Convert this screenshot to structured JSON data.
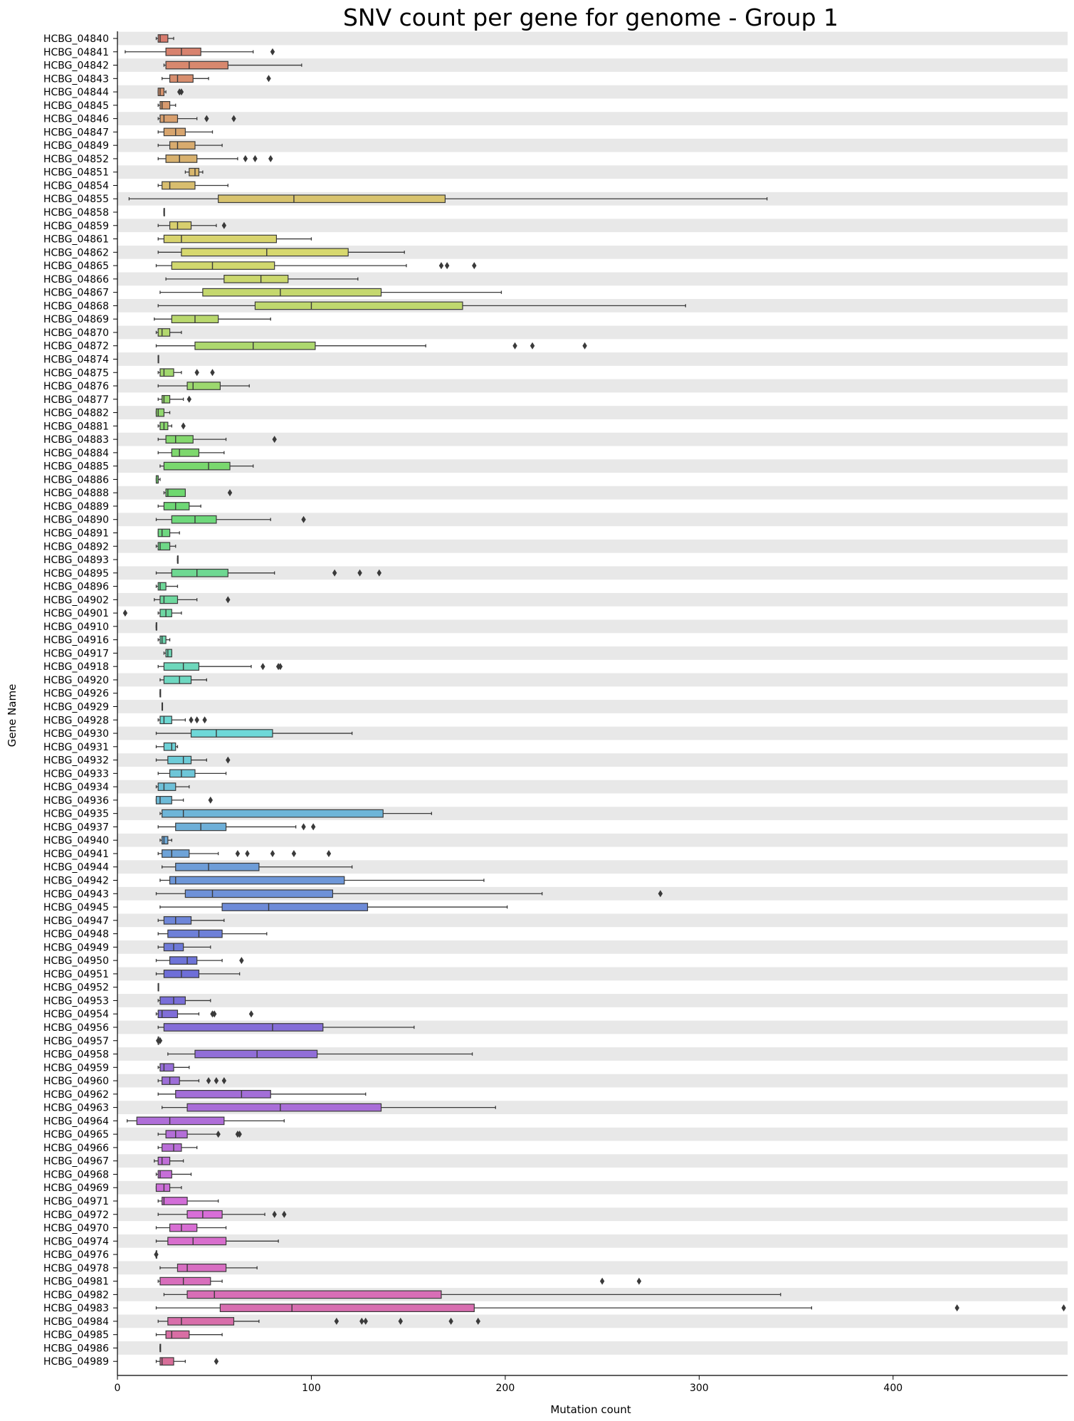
{
  "chart_data": {
    "type": "box",
    "orientation": "horizontal",
    "title": "SNV count per gene for genome - Group 1",
    "xlabel": "Mutation count",
    "ylabel": "Gene Name",
    "xlim": [
      0,
      490
    ],
    "xticks": [
      0,
      100,
      200,
      300,
      400
    ],
    "grid": false,
    "row_banding": true,
    "colors": {
      "band": "#e8e8e8",
      "box_edge": "#3a3a3a",
      "outlier": "#3a3a3a"
    },
    "palette_note": "hue-graded (salmon → orange → olive → green → teal → blue → violet → pink) down the gene list",
    "genes": [
      {
        "name": "HCBG_04840",
        "whislo": 20,
        "q1": 21,
        "med": 22,
        "q3": 26,
        "whishi": 29,
        "fliers": []
      },
      {
        "name": "HCBG_04841",
        "whislo": 4,
        "q1": 25,
        "med": 33,
        "q3": 43,
        "whishi": 70,
        "fliers": [
          80
        ]
      },
      {
        "name": "HCBG_04842",
        "whislo": 24,
        "q1": 25,
        "med": 37,
        "q3": 57,
        "whishi": 95,
        "fliers": []
      },
      {
        "name": "HCBG_04843",
        "whislo": 23,
        "q1": 27,
        "med": 31,
        "q3": 39,
        "whishi": 47,
        "fliers": [
          78
        ]
      },
      {
        "name": "HCBG_04844",
        "whislo": 21,
        "q1": 21,
        "med": 22,
        "q3": 24,
        "whishi": 25,
        "fliers": [
          32,
          33
        ]
      },
      {
        "name": "HCBG_04845",
        "whislo": 21,
        "q1": 22,
        "med": 23,
        "q3": 27,
        "whishi": 30,
        "fliers": []
      },
      {
        "name": "HCBG_04846",
        "whislo": 21,
        "q1": 22,
        "med": 24,
        "q3": 31,
        "whishi": 41,
        "fliers": [
          46,
          60
        ]
      },
      {
        "name": "HCBG_04847",
        "whislo": 21,
        "q1": 24,
        "med": 30,
        "q3": 35,
        "whishi": 49,
        "fliers": []
      },
      {
        "name": "HCBG_04849",
        "whislo": 21,
        "q1": 27,
        "med": 31,
        "q3": 40,
        "whishi": 54,
        "fliers": []
      },
      {
        "name": "HCBG_04852",
        "whislo": 21,
        "q1": 25,
        "med": 32,
        "q3": 41,
        "whishi": 62,
        "fliers": [
          66,
          71,
          79
        ]
      },
      {
        "name": "HCBG_04851",
        "whislo": 35,
        "q1": 37,
        "med": 40,
        "q3": 42,
        "whishi": 44,
        "fliers": []
      },
      {
        "name": "HCBG_04854",
        "whislo": 21,
        "q1": 23,
        "med": 27,
        "q3": 40,
        "whishi": 57,
        "fliers": []
      },
      {
        "name": "HCBG_04855",
        "whislo": 6,
        "q1": 52,
        "med": 91,
        "q3": 169,
        "whishi": 335,
        "fliers": []
      },
      {
        "name": "HCBG_04858",
        "whislo": 24,
        "q1": 24,
        "med": 24,
        "q3": 24,
        "whishi": 24,
        "fliers": []
      },
      {
        "name": "HCBG_04859",
        "whislo": 21,
        "q1": 27,
        "med": 31,
        "q3": 38,
        "whishi": 51,
        "fliers": [
          55
        ]
      },
      {
        "name": "HCBG_04861",
        "whislo": 21,
        "q1": 24,
        "med": 33,
        "q3": 82,
        "whishi": 100,
        "fliers": []
      },
      {
        "name": "HCBG_04862",
        "whislo": 21,
        "q1": 33,
        "med": 77,
        "q3": 119,
        "whishi": 148,
        "fliers": []
      },
      {
        "name": "HCBG_04865",
        "whislo": 20,
        "q1": 28,
        "med": 49,
        "q3": 81,
        "whishi": 149,
        "fliers": [
          167,
          170,
          184
        ]
      },
      {
        "name": "HCBG_04866",
        "whislo": 25,
        "q1": 55,
        "med": 74,
        "q3": 88,
        "whishi": 124,
        "fliers": []
      },
      {
        "name": "HCBG_04867",
        "whislo": 22,
        "q1": 44,
        "med": 84,
        "q3": 136,
        "whishi": 198,
        "fliers": []
      },
      {
        "name": "HCBG_04868",
        "whislo": 21,
        "q1": 71,
        "med": 100,
        "q3": 178,
        "whishi": 293,
        "fliers": []
      },
      {
        "name": "HCBG_04869",
        "whislo": 19,
        "q1": 28,
        "med": 40,
        "q3": 52,
        "whishi": 79,
        "fliers": []
      },
      {
        "name": "HCBG_04870",
        "whislo": 20,
        "q1": 21,
        "med": 23,
        "q3": 27,
        "whishi": 33,
        "fliers": []
      },
      {
        "name": "HCBG_04872",
        "whislo": 20,
        "q1": 40,
        "med": 70,
        "q3": 102,
        "whishi": 159,
        "fliers": [
          205,
          214,
          241
        ]
      },
      {
        "name": "HCBG_04874",
        "whislo": 21,
        "q1": 21,
        "med": 21,
        "q3": 21,
        "whishi": 21,
        "fliers": []
      },
      {
        "name": "HCBG_04875",
        "whislo": 21,
        "q1": 22,
        "med": 24,
        "q3": 29,
        "whishi": 33,
        "fliers": [
          41,
          49
        ]
      },
      {
        "name": "HCBG_04876",
        "whislo": 21,
        "q1": 36,
        "med": 39,
        "q3": 53,
        "whishi": 68,
        "fliers": []
      },
      {
        "name": "HCBG_04877",
        "whislo": 21,
        "q1": 23,
        "med": 24,
        "q3": 27,
        "whishi": 34,
        "fliers": [
          37
        ]
      },
      {
        "name": "HCBG_04882",
        "whislo": 20,
        "q1": 20,
        "med": 21,
        "q3": 24,
        "whishi": 27,
        "fliers": []
      },
      {
        "name": "HCBG_04881",
        "whislo": 21,
        "q1": 22,
        "med": 24,
        "q3": 26,
        "whishi": 28,
        "fliers": [
          34
        ]
      },
      {
        "name": "HCBG_04883",
        "whislo": 21,
        "q1": 25,
        "med": 30,
        "q3": 39,
        "whishi": 56,
        "fliers": [
          81
        ]
      },
      {
        "name": "HCBG_04884",
        "whislo": 21,
        "q1": 28,
        "med": 32,
        "q3": 42,
        "whishi": 55,
        "fliers": []
      },
      {
        "name": "HCBG_04885",
        "whislo": 22,
        "q1": 24,
        "med": 47,
        "q3": 58,
        "whishi": 70,
        "fliers": []
      },
      {
        "name": "HCBG_04886",
        "whislo": 20,
        "q1": 20,
        "med": 21,
        "q3": 21,
        "whishi": 22,
        "fliers": []
      },
      {
        "name": "HCBG_04888",
        "whislo": 24,
        "q1": 25,
        "med": 26,
        "q3": 35,
        "whishi": 35,
        "fliers": [
          58
        ]
      },
      {
        "name": "HCBG_04889",
        "whislo": 21,
        "q1": 24,
        "med": 30,
        "q3": 37,
        "whishi": 43,
        "fliers": []
      },
      {
        "name": "HCBG_04890",
        "whislo": 20,
        "q1": 28,
        "med": 40,
        "q3": 51,
        "whishi": 79,
        "fliers": [
          96
        ]
      },
      {
        "name": "HCBG_04891",
        "whislo": 21,
        "q1": 21,
        "med": 23,
        "q3": 27,
        "whishi": 32,
        "fliers": []
      },
      {
        "name": "HCBG_04892",
        "whislo": 20,
        "q1": 21,
        "med": 22,
        "q3": 27,
        "whishi": 30,
        "fliers": []
      },
      {
        "name": "HCBG_04893",
        "whislo": 31,
        "q1": 31,
        "med": 31,
        "q3": 31,
        "whishi": 31,
        "fliers": []
      },
      {
        "name": "HCBG_04895",
        "whislo": 20,
        "q1": 28,
        "med": 41,
        "q3": 57,
        "whishi": 81,
        "fliers": [
          112,
          125,
          135
        ]
      },
      {
        "name": "HCBG_04896",
        "whislo": 20,
        "q1": 21,
        "med": 22,
        "q3": 25,
        "whishi": 31,
        "fliers": []
      },
      {
        "name": "HCBG_04902",
        "whislo": 19,
        "q1": 22,
        "med": 24,
        "q3": 31,
        "whishi": 41,
        "fliers": [
          57
        ]
      },
      {
        "name": "HCBG_04901",
        "whislo": 21,
        "q1": 22,
        "med": 25,
        "q3": 28,
        "whishi": 33,
        "fliers": [
          4
        ]
      },
      {
        "name": "HCBG_04910",
        "whislo": 20,
        "q1": 20,
        "med": 20,
        "q3": 20,
        "whishi": 20,
        "fliers": []
      },
      {
        "name": "HCBG_04916",
        "whislo": 21,
        "q1": 22,
        "med": 23,
        "q3": 25,
        "whishi": 27,
        "fliers": []
      },
      {
        "name": "HCBG_04917",
        "whislo": 24,
        "q1": 25,
        "med": 26,
        "q3": 28,
        "whishi": 28,
        "fliers": []
      },
      {
        "name": "HCBG_04918",
        "whislo": 21,
        "q1": 24,
        "med": 34,
        "q3": 42,
        "whishi": 69,
        "fliers": [
          75,
          83,
          84
        ]
      },
      {
        "name": "HCBG_04920",
        "whislo": 22,
        "q1": 24,
        "med": 32,
        "q3": 38,
        "whishi": 46,
        "fliers": []
      },
      {
        "name": "HCBG_04926",
        "whislo": 22,
        "q1": 22,
        "med": 22,
        "q3": 22,
        "whishi": 22,
        "fliers": []
      },
      {
        "name": "HCBG_04929",
        "whislo": 23,
        "q1": 23,
        "med": 23,
        "q3": 23,
        "whishi": 23,
        "fliers": []
      },
      {
        "name": "HCBG_04928",
        "whislo": 21,
        "q1": 22,
        "med": 24,
        "q3": 28,
        "whishi": 35,
        "fliers": [
          38,
          41,
          45
        ]
      },
      {
        "name": "HCBG_04930",
        "whislo": 20,
        "q1": 38,
        "med": 51,
        "q3": 80,
        "whishi": 121,
        "fliers": []
      },
      {
        "name": "HCBG_04931",
        "whislo": 20,
        "q1": 24,
        "med": 28,
        "q3": 30,
        "whishi": 31,
        "fliers": []
      },
      {
        "name": "HCBG_04932",
        "whislo": 20,
        "q1": 26,
        "med": 34,
        "q3": 38,
        "whishi": 46,
        "fliers": [
          57
        ]
      },
      {
        "name": "HCBG_04933",
        "whislo": 21,
        "q1": 27,
        "med": 33,
        "q3": 40,
        "whishi": 56,
        "fliers": []
      },
      {
        "name": "HCBG_04934",
        "whislo": 20,
        "q1": 21,
        "med": 24,
        "q3": 30,
        "whishi": 37,
        "fliers": []
      },
      {
        "name": "HCBG_04936",
        "whislo": 20,
        "q1": 20,
        "med": 22,
        "q3": 28,
        "whishi": 34,
        "fliers": [
          48
        ]
      },
      {
        "name": "HCBG_04935",
        "whislo": 22,
        "q1": 23,
        "med": 34,
        "q3": 137,
        "whishi": 162,
        "fliers": []
      },
      {
        "name": "HCBG_04937",
        "whislo": 21,
        "q1": 30,
        "med": 43,
        "q3": 56,
        "whishi": 92,
        "fliers": [
          96,
          101
        ]
      },
      {
        "name": "HCBG_04940",
        "whislo": 22,
        "q1": 23,
        "med": 24,
        "q3": 26,
        "whishi": 28,
        "fliers": []
      },
      {
        "name": "HCBG_04941",
        "whislo": 21,
        "q1": 23,
        "med": 28,
        "q3": 37,
        "whishi": 52,
        "fliers": [
          62,
          67,
          80,
          91,
          109
        ]
      },
      {
        "name": "HCBG_04944",
        "whislo": 23,
        "q1": 30,
        "med": 47,
        "q3": 73,
        "whishi": 121,
        "fliers": []
      },
      {
        "name": "HCBG_04942",
        "whislo": 22,
        "q1": 27,
        "med": 30,
        "q3": 117,
        "whishi": 189,
        "fliers": []
      },
      {
        "name": "HCBG_04943",
        "whislo": 20,
        "q1": 35,
        "med": 49,
        "q3": 111,
        "whishi": 219,
        "fliers": [
          280
        ]
      },
      {
        "name": "HCBG_04945",
        "whislo": 22,
        "q1": 54,
        "med": 78,
        "q3": 129,
        "whishi": 201,
        "fliers": []
      },
      {
        "name": "HCBG_04947",
        "whislo": 21,
        "q1": 24,
        "med": 30,
        "q3": 38,
        "whishi": 55,
        "fliers": []
      },
      {
        "name": "HCBG_04948",
        "whislo": 21,
        "q1": 26,
        "med": 42,
        "q3": 54,
        "whishi": 77,
        "fliers": []
      },
      {
        "name": "HCBG_04949",
        "whislo": 21,
        "q1": 24,
        "med": 29,
        "q3": 34,
        "whishi": 48,
        "fliers": []
      },
      {
        "name": "HCBG_04950",
        "whislo": 20,
        "q1": 27,
        "med": 36,
        "q3": 41,
        "whishi": 54,
        "fliers": [
          64
        ]
      },
      {
        "name": "HCBG_04951",
        "whislo": 20,
        "q1": 24,
        "med": 33,
        "q3": 42,
        "whishi": 63,
        "fliers": []
      },
      {
        "name": "HCBG_04952",
        "whislo": 21,
        "q1": 21,
        "med": 21,
        "q3": 21,
        "whishi": 21,
        "fliers": []
      },
      {
        "name": "HCBG_04953",
        "whislo": 21,
        "q1": 22,
        "med": 29,
        "q3": 35,
        "whishi": 48,
        "fliers": []
      },
      {
        "name": "HCBG_04954",
        "whislo": 20,
        "q1": 21,
        "med": 23,
        "q3": 31,
        "whishi": 42,
        "fliers": [
          49,
          50,
          69
        ]
      },
      {
        "name": "HCBG_04956",
        "whislo": 21,
        "q1": 24,
        "med": 80,
        "q3": 106,
        "whishi": 153,
        "fliers": []
      },
      {
        "name": "HCBG_04957",
        "whislo": 21,
        "q1": 21,
        "med": 21,
        "q3": 21,
        "whishi": 21,
        "fliers": [
          21,
          22
        ]
      },
      {
        "name": "HCBG_04958",
        "whislo": 26,
        "q1": 40,
        "med": 72,
        "q3": 103,
        "whishi": 183,
        "fliers": []
      },
      {
        "name": "HCBG_04959",
        "whislo": 21,
        "q1": 22,
        "med": 24,
        "q3": 29,
        "whishi": 37,
        "fliers": []
      },
      {
        "name": "HCBG_04960",
        "whislo": 21,
        "q1": 23,
        "med": 27,
        "q3": 32,
        "whishi": 42,
        "fliers": [
          47,
          51,
          55
        ]
      },
      {
        "name": "HCBG_04962",
        "whislo": 21,
        "q1": 30,
        "med": 64,
        "q3": 79,
        "whishi": 128,
        "fliers": []
      },
      {
        "name": "HCBG_04963",
        "whislo": 23,
        "q1": 36,
        "med": 84,
        "q3": 136,
        "whishi": 195,
        "fliers": []
      },
      {
        "name": "HCBG_04964",
        "whislo": 5,
        "q1": 10,
        "med": 27,
        "q3": 55,
        "whishi": 86,
        "fliers": []
      },
      {
        "name": "HCBG_04965",
        "whislo": 21,
        "q1": 25,
        "med": 30,
        "q3": 36,
        "whishi": 52,
        "fliers": [
          52,
          62,
          63
        ]
      },
      {
        "name": "HCBG_04966",
        "whislo": 21,
        "q1": 23,
        "med": 29,
        "q3": 33,
        "whishi": 41,
        "fliers": []
      },
      {
        "name": "HCBG_04967",
        "whislo": 19,
        "q1": 21,
        "med": 23,
        "q3": 27,
        "whishi": 34,
        "fliers": []
      },
      {
        "name": "HCBG_04968",
        "whislo": 20,
        "q1": 21,
        "med": 22,
        "q3": 28,
        "whishi": 38,
        "fliers": []
      },
      {
        "name": "HCBG_04969",
        "whislo": 20,
        "q1": 20,
        "med": 24,
        "q3": 27,
        "whishi": 33,
        "fliers": []
      },
      {
        "name": "HCBG_04971",
        "whislo": 21,
        "q1": 23,
        "med": 24,
        "q3": 36,
        "whishi": 52,
        "fliers": []
      },
      {
        "name": "HCBG_04972",
        "whislo": 21,
        "q1": 36,
        "med": 44,
        "q3": 54,
        "whishi": 76,
        "fliers": [
          81,
          86
        ]
      },
      {
        "name": "HCBG_04970",
        "whislo": 20,
        "q1": 27,
        "med": 33,
        "q3": 41,
        "whishi": 56,
        "fliers": []
      },
      {
        "name": "HCBG_04974",
        "whislo": 20,
        "q1": 26,
        "med": 39,
        "q3": 56,
        "whishi": 83,
        "fliers": []
      },
      {
        "name": "HCBG_04976",
        "whislo": 20,
        "q1": 20,
        "med": 20,
        "q3": 20,
        "whishi": 20,
        "fliers": [
          20
        ]
      },
      {
        "name": "HCBG_04978",
        "whislo": 22,
        "q1": 31,
        "med": 36,
        "q3": 56,
        "whishi": 72,
        "fliers": []
      },
      {
        "name": "HCBG_04981",
        "whislo": 21,
        "q1": 22,
        "med": 34,
        "q3": 48,
        "whishi": 54,
        "fliers": [
          250,
          269
        ]
      },
      {
        "name": "HCBG_04982",
        "whislo": 24,
        "q1": 36,
        "med": 50,
        "q3": 167,
        "whishi": 342,
        "fliers": []
      },
      {
        "name": "HCBG_04983",
        "whislo": 20,
        "q1": 53,
        "med": 90,
        "q3": 184,
        "whishi": 358,
        "fliers": [
          433,
          488
        ]
      },
      {
        "name": "HCBG_04984",
        "whislo": 21,
        "q1": 26,
        "med": 33,
        "q3": 60,
        "whishi": 73,
        "fliers": [
          113,
          126,
          128,
          146,
          172,
          186
        ]
      },
      {
        "name": "HCBG_04985",
        "whislo": 20,
        "q1": 25,
        "med": 28,
        "q3": 37,
        "whishi": 54,
        "fliers": []
      },
      {
        "name": "HCBG_04986",
        "whislo": 22,
        "q1": 22,
        "med": 22,
        "q3": 22,
        "whishi": 22,
        "fliers": []
      },
      {
        "name": "HCBG_04989",
        "whislo": 20,
        "q1": 22,
        "med": 23,
        "q3": 29,
        "whishi": 35,
        "fliers": [
          51
        ]
      }
    ]
  }
}
